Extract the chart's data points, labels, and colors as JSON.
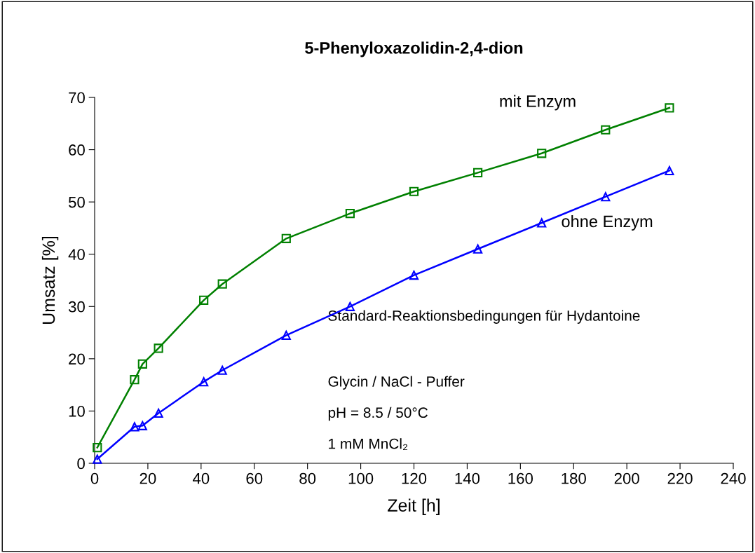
{
  "chart_data": {
    "type": "line",
    "title": "5-Phenyloxazolidin-2,4-dion",
    "xlabel": "Zeit [h]",
    "ylabel": "Umsatz [%]",
    "x": [
      1,
      15,
      18,
      24,
      41,
      48,
      72,
      96,
      120,
      144,
      168,
      192,
      216
    ],
    "series": [
      {
        "name": "mit Enzym",
        "color": "#008000",
        "marker": "square",
        "values": [
          3,
          16,
          19,
          22,
          31.2,
          34.3,
          43,
          47.8,
          52,
          55.6,
          59.3,
          63.8,
          68
        ]
      },
      {
        "name": "ohne Enzym",
        "color": "#0000ff",
        "marker": "triangle",
        "values": [
          0.8,
          7,
          7.2,
          9.6,
          15.6,
          17.8,
          24.5,
          30,
          36,
          41,
          46,
          51,
          56
        ]
      }
    ],
    "xlim": [
      0,
      240
    ],
    "xticks": [
      0,
      20,
      40,
      60,
      80,
      100,
      120,
      140,
      160,
      180,
      200,
      220,
      240
    ],
    "ylim": [
      0,
      70
    ],
    "yticks": [
      0,
      10,
      20,
      30,
      40,
      50,
      60,
      70
    ],
    "grid": false,
    "legend": false,
    "line_style": "solid",
    "annotations": [
      "Standard-Reaktionsbedingungen für Hydantoine",
      "Glycin / NaCl - Puffer",
      "pH = 8.5 / 50°C",
      "1 mM MnCl₂"
    ]
  }
}
